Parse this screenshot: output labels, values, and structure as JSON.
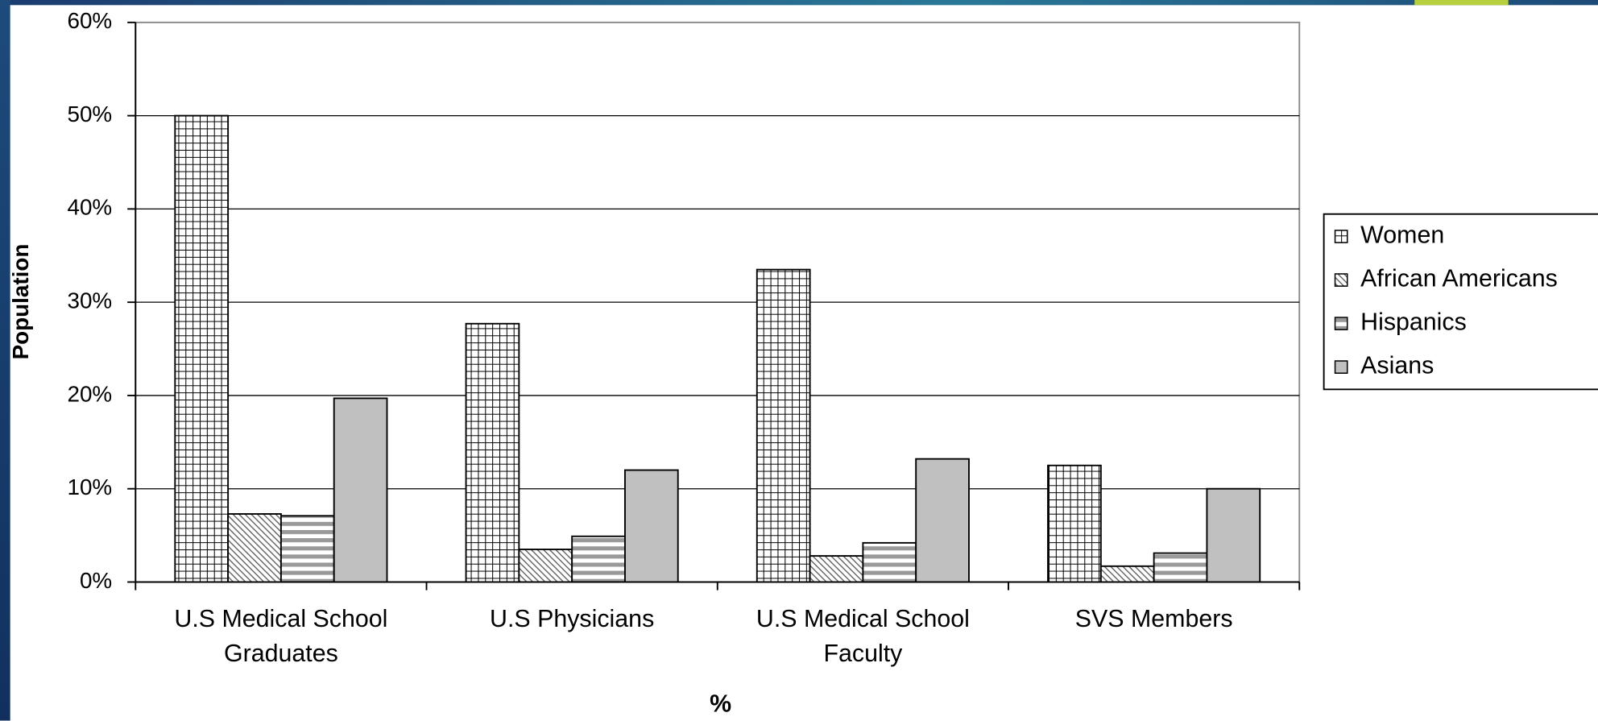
{
  "chart_data": {
    "type": "bar",
    "x_label": "%",
    "y_label": "Population",
    "categories": [
      "U.S Medical School Graduates",
      "U.S Physicians",
      "U.S Medical School Faculty",
      "SVS Members"
    ],
    "series": [
      {
        "name": "Women",
        "color": "#000000",
        "pattern": "grid",
        "values": [
          50,
          27.7,
          33.5,
          12.5
        ]
      },
      {
        "name": "African Americans",
        "color": "#555555",
        "pattern": "diagonal",
        "values": [
          7.3,
          3.5,
          2.8,
          1.7
        ]
      },
      {
        "name": "Hispanics",
        "color": "#999999",
        "pattern": "horizontal",
        "values": [
          7.1,
          4.9,
          4.2,
          3.1
        ]
      },
      {
        "name": "Asians",
        "color": "#c0c0c0",
        "pattern": "solid",
        "values": [
          19.7,
          12.0,
          13.2,
          10.0
        ]
      }
    ],
    "ylim": [
      0,
      60
    ],
    "yticks": [
      {
        "value": 0,
        "label": "0%"
      },
      {
        "value": 10,
        "label": "10%"
      },
      {
        "value": 20,
        "label": "20%"
      },
      {
        "value": 30,
        "label": "30%"
      },
      {
        "value": 40,
        "label": "40%"
      },
      {
        "value": 50,
        "label": "50%"
      },
      {
        "value": 60,
        "label": "60%"
      }
    ],
    "grid": true,
    "legend": "right"
  }
}
